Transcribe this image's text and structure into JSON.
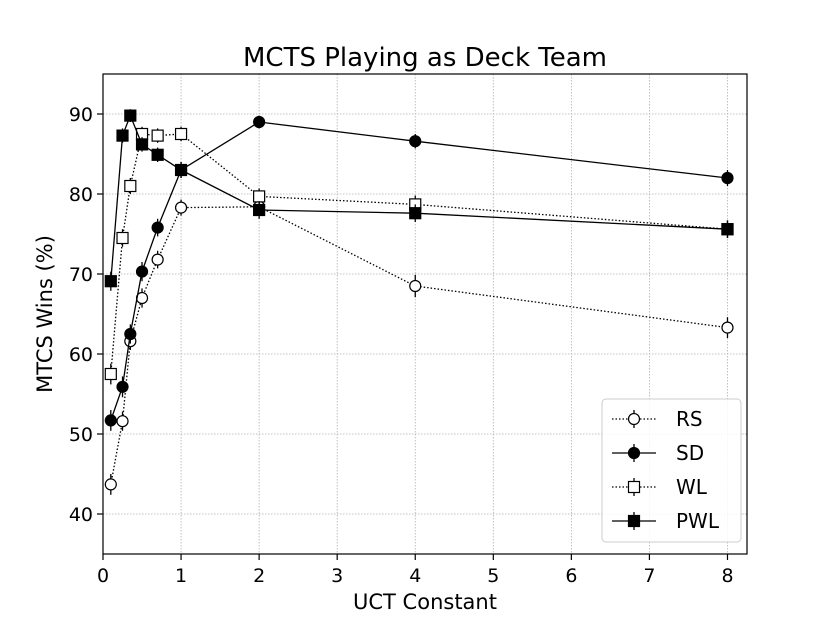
{
  "chart_data": {
    "type": "line",
    "title": "MCTS Playing as Deck Team",
    "xlabel": "UCT Constant",
    "ylabel": "MTCS Wins (%)",
    "xlim": [
      0,
      8.25
    ],
    "ylim": [
      35,
      95
    ],
    "xticks": [
      0,
      1,
      2,
      3,
      4,
      5,
      6,
      7,
      8
    ],
    "yticks": [
      40,
      50,
      60,
      70,
      80,
      90
    ],
    "grid": true,
    "legend_position": "lower-right",
    "series": [
      {
        "name": "RS",
        "line_style": "dotted",
        "marker": "circle-open",
        "x": [
          0.1,
          0.25,
          0.35,
          0.5,
          0.7,
          1,
          2,
          4,
          8
        ],
        "y": [
          43.7,
          51.6,
          61.6,
          67.0,
          71.8,
          78.3,
          78.4,
          68.5,
          63.3
        ],
        "err": [
          1.3,
          1.2,
          1.1,
          1.2,
          1.1,
          1.0,
          1.1,
          1.4,
          1.3
        ]
      },
      {
        "name": "SD",
        "line_style": "solid",
        "marker": "circle-filled",
        "x": [
          0.1,
          0.25,
          0.35,
          0.5,
          0.7,
          1,
          2,
          4,
          8
        ],
        "y": [
          51.7,
          55.9,
          62.5,
          70.3,
          75.8,
          83.0,
          89.0,
          86.6,
          82.0
        ],
        "err": [
          1.3,
          1.3,
          1.2,
          1.2,
          1.1,
          1.0,
          0.8,
          0.9,
          1.0
        ]
      },
      {
        "name": "WL",
        "line_style": "dotted",
        "marker": "square-open",
        "x": [
          0.1,
          0.25,
          0.35,
          0.5,
          0.7,
          1,
          2,
          4,
          8
        ],
        "y": [
          57.5,
          74.5,
          81.0,
          87.5,
          87.3,
          87.5,
          79.7,
          78.7,
          75.6
        ],
        "err": [
          1.3,
          1.1,
          1.0,
          0.9,
          0.9,
          0.9,
          1.0,
          1.1,
          1.1
        ]
      },
      {
        "name": "PWL",
        "line_style": "solid",
        "marker": "square-filled",
        "x": [
          0.1,
          0.25,
          0.35,
          0.5,
          0.7,
          1,
          2,
          4,
          8
        ],
        "y": [
          69.1,
          87.3,
          89.8,
          86.2,
          84.9,
          83.0,
          78.0,
          77.6,
          75.6
        ],
        "err": [
          1.2,
          0.9,
          0.8,
          0.9,
          0.9,
          1.0,
          1.1,
          1.1,
          1.1
        ]
      }
    ]
  }
}
